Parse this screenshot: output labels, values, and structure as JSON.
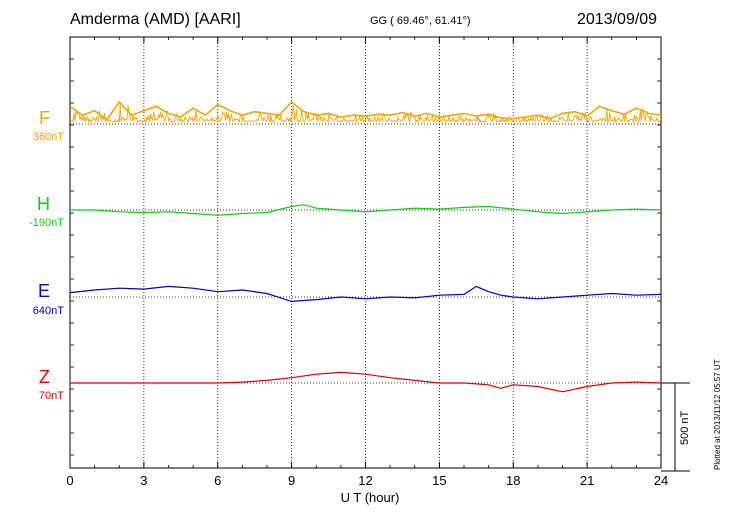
{
  "header": {
    "station": "Amderma (AMD)  [AARI]",
    "coordinates": "GG ( 69.46°,  61.41°)",
    "date": "2013/09/09"
  },
  "footer": {
    "xlabel": "U T (hour)",
    "plotted": "Plotted at 2013/11/12 05:57 UT",
    "scale_label": "500 nT"
  },
  "chart_data": {
    "type": "line",
    "x_range": [
      0,
      24
    ],
    "x_ticks": [
      "0",
      "3",
      "6",
      "9",
      "12",
      "15",
      "18",
      "21",
      "24"
    ],
    "xlabel": "U T (hour)",
    "grid": true,
    "scale_bar_nT": 500,
    "series": [
      {
        "name": "F",
        "baseline": "360nT",
        "color": "#f5a500",
        "x": [
          0,
          0.5,
          1,
          1.5,
          2,
          2.5,
          3,
          3.5,
          4,
          4.5,
          5,
          5.5,
          6,
          6.5,
          7,
          7.5,
          8,
          8.5,
          9,
          9.5,
          10,
          10.5,
          11,
          11.5,
          12,
          12.5,
          13,
          13.5,
          14,
          14.5,
          15,
          15.5,
          16,
          16.5,
          17,
          17.5,
          18,
          18.5,
          19,
          19.5,
          20,
          20.5,
          21,
          21.5,
          22,
          22.5,
          23,
          23.5,
          24
        ],
        "y": [
          20,
          10,
          15,
          5,
          25,
          10,
          15,
          20,
          12,
          8,
          18,
          10,
          22,
          15,
          10,
          14,
          12,
          10,
          25,
          14,
          10,
          12,
          8,
          10,
          9,
          11,
          10,
          13,
          9,
          12,
          8,
          10,
          12,
          9,
          11,
          7,
          6,
          8,
          10,
          6,
          12,
          14,
          9,
          20,
          15,
          11,
          18,
          12,
          10
        ]
      },
      {
        "name": "H",
        "baseline": "-190nT",
        "color": "#10cc10",
        "x": [
          0,
          1,
          2,
          3,
          4,
          5,
          6,
          7,
          8,
          9,
          9.5,
          10,
          11,
          12,
          13,
          14,
          15,
          16,
          17,
          18,
          19,
          20,
          21,
          22,
          23,
          24
        ],
        "y": [
          0,
          0,
          -2,
          -3,
          -2,
          -4,
          -6,
          -4,
          -3,
          4,
          6,
          2,
          0,
          -2,
          0,
          2,
          1,
          3,
          4,
          1,
          -2,
          -4,
          -2,
          0,
          1,
          0
        ]
      },
      {
        "name": "E",
        "baseline": "640nT",
        "color": "#0000bb",
        "x": [
          0,
          1,
          2,
          3,
          4,
          5,
          6,
          7,
          8,
          9,
          10,
          11,
          12,
          13,
          14,
          15,
          16,
          16.5,
          17,
          17.5,
          18,
          19,
          20,
          21,
          22,
          23,
          24
        ],
        "y": [
          5,
          8,
          10,
          9,
          12,
          10,
          6,
          8,
          4,
          -5,
          -3,
          0,
          -2,
          0,
          -1,
          2,
          3,
          12,
          6,
          2,
          0,
          -2,
          0,
          2,
          4,
          2,
          3
        ]
      },
      {
        "name": "Z",
        "baseline": "70nT",
        "color": "#dd0000",
        "x": [
          0,
          1,
          2,
          3,
          4,
          5,
          6,
          7,
          8,
          9,
          10,
          11,
          12,
          13,
          14,
          15,
          16,
          17,
          17.5,
          18,
          19,
          20,
          21,
          22,
          23,
          24
        ],
        "y": [
          0,
          0,
          0,
          0,
          0,
          0,
          0,
          1,
          3,
          6,
          10,
          12,
          10,
          6,
          3,
          0,
          0,
          -2,
          -6,
          -2,
          -4,
          -10,
          -4,
          0,
          1,
          0
        ]
      }
    ]
  }
}
